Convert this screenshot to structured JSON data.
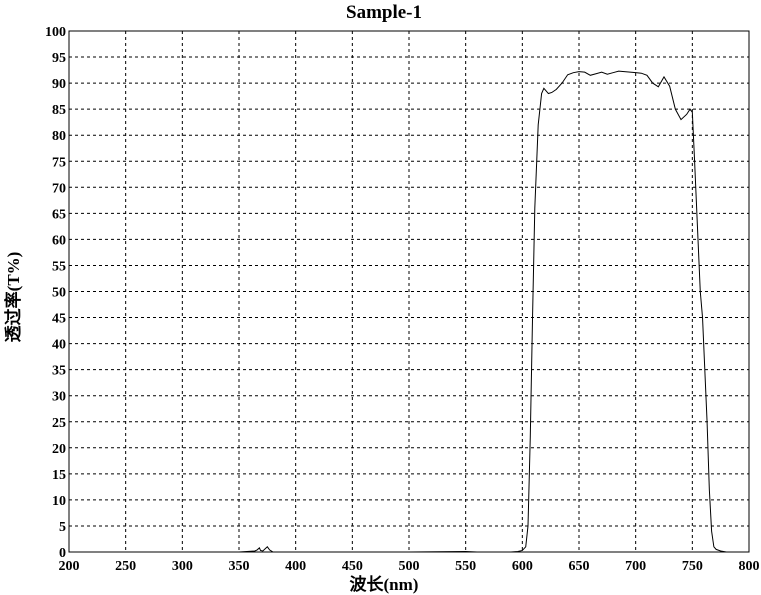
{
  "chart_data": {
    "type": "line",
    "title": "Sample-1",
    "xlabel": "波长(nm)",
    "ylabel": "透过率(T%)",
    "xlim": [
      200,
      800
    ],
    "ylim": [
      0,
      100
    ],
    "x_ticks": [
      200,
      250,
      300,
      350,
      400,
      450,
      500,
      550,
      600,
      650,
      700,
      750,
      800
    ],
    "y_ticks": [
      0,
      5,
      10,
      15,
      20,
      25,
      30,
      35,
      40,
      45,
      50,
      55,
      60,
      65,
      70,
      75,
      80,
      85,
      90,
      95,
      100
    ],
    "grid": true,
    "grid_style": "dashed",
    "line_color": "#000000",
    "series": [
      {
        "x": [
          200,
          300,
          350,
          364,
          366,
          368,
          369,
          371,
          373,
          375,
          377,
          380,
          400,
          500,
          550,
          560,
          590,
          596,
          600,
          603,
          605,
          607,
          609,
          611,
          614,
          617,
          619,
          621,
          623,
          626,
          630,
          635,
          640,
          645,
          650,
          655,
          660,
          665,
          670,
          675,
          680,
          685,
          690,
          695,
          700,
          705,
          710,
          715,
          720,
          725,
          730,
          735,
          740,
          745,
          748,
          750,
          752,
          755,
          757,
          759,
          761,
          763,
          765,
          767,
          769,
          771,
          775,
          780,
          785,
          790
        ],
        "y": [
          0,
          0,
          0,
          0.2,
          0.4,
          0.8,
          0.3,
          0.2,
          0.6,
          1.0,
          0.4,
          0,
          0,
          0,
          0.1,
          0,
          0,
          0.1,
          0.3,
          1,
          5,
          22,
          45,
          66,
          82,
          88,
          89,
          88.5,
          88,
          88.2,
          88.8,
          90,
          91.6,
          92.0,
          92.2,
          92.1,
          91.5,
          91.8,
          92.1,
          91.7,
          92.0,
          92.3,
          92.2,
          92.1,
          92.0,
          91.9,
          91.5,
          90,
          89.3,
          91.2,
          89.4,
          85,
          83,
          84,
          85,
          84.4,
          75,
          60,
          50,
          45,
          35,
          25,
          12,
          4,
          1,
          0.5,
          0.2,
          0,
          0,
          0
        ]
      }
    ]
  }
}
